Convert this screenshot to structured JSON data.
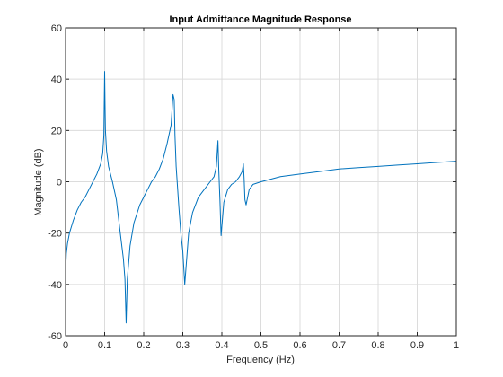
{
  "chart_data": {
    "type": "line",
    "title": "Input Admittance Magnitude Response",
    "xlabel": "Frequency (Hz)",
    "ylabel": "Magnitude (dB)",
    "xlim": [
      0,
      1
    ],
    "ylim": [
      -60,
      60
    ],
    "xticks": [
      0,
      0.1,
      0.2,
      0.3,
      0.4,
      0.5,
      0.6,
      0.7,
      0.8,
      0.9,
      1
    ],
    "xtick_labels": [
      "0",
      "0.1",
      "0.2",
      "0.3",
      "0.4",
      "0.5",
      "0.6",
      "0.7",
      "0.8",
      "0.9",
      "1"
    ],
    "yticks": [
      -60,
      -40,
      -20,
      0,
      20,
      40,
      60
    ],
    "ytick_labels": [
      "-60",
      "-40",
      "-20",
      "0",
      "20",
      "40",
      "60"
    ],
    "grid": true,
    "line_color": "#0072bd",
    "series": [
      {
        "x": [
          0.0,
          0.002,
          0.005,
          0.01,
          0.02,
          0.03,
          0.04,
          0.05,
          0.06,
          0.07,
          0.08,
          0.09,
          0.095,
          0.098,
          0.1,
          0.101,
          0.102,
          0.105,
          0.11,
          0.12,
          0.13,
          0.14,
          0.148,
          0.152,
          0.155,
          0.158,
          0.165,
          0.175,
          0.19,
          0.2,
          0.21,
          0.22,
          0.23,
          0.24,
          0.25,
          0.26,
          0.27,
          0.275,
          0.278,
          0.28,
          0.283,
          0.29,
          0.295,
          0.3,
          0.305,
          0.31,
          0.315,
          0.325,
          0.34,
          0.355,
          0.37,
          0.38,
          0.386,
          0.39,
          0.392,
          0.395,
          0.398,
          0.405,
          0.415,
          0.425,
          0.435,
          0.445,
          0.452,
          0.455,
          0.457,
          0.459,
          0.462,
          0.47,
          0.48,
          0.5,
          0.55,
          0.6,
          0.65,
          0.7,
          0.75,
          0.8,
          0.85,
          0.9,
          0.95,
          1.0
        ],
        "y": [
          -35,
          -28,
          -24,
          -20,
          -15,
          -11,
          -8,
          -6,
          -3,
          0,
          3,
          7,
          11,
          18,
          43,
          30,
          20,
          12,
          6,
          0,
          -7,
          -20,
          -30,
          -38,
          -55,
          -38,
          -25,
          -16,
          -9,
          -6,
          -3,
          0,
          2,
          5,
          9,
          15,
          22,
          34,
          32,
          18,
          6,
          -10,
          -20,
          -27,
          -40,
          -30,
          -20,
          -12,
          -6,
          -3,
          0,
          2,
          6,
          16,
          5,
          -7,
          -21,
          -8,
          -3,
          -1,
          0,
          2,
          4,
          7,
          1,
          -7,
          -9,
          -3,
          -1,
          0,
          2,
          3,
          4,
          5,
          5.5,
          6,
          6.5,
          7,
          7.5,
          8
        ]
      }
    ]
  }
}
